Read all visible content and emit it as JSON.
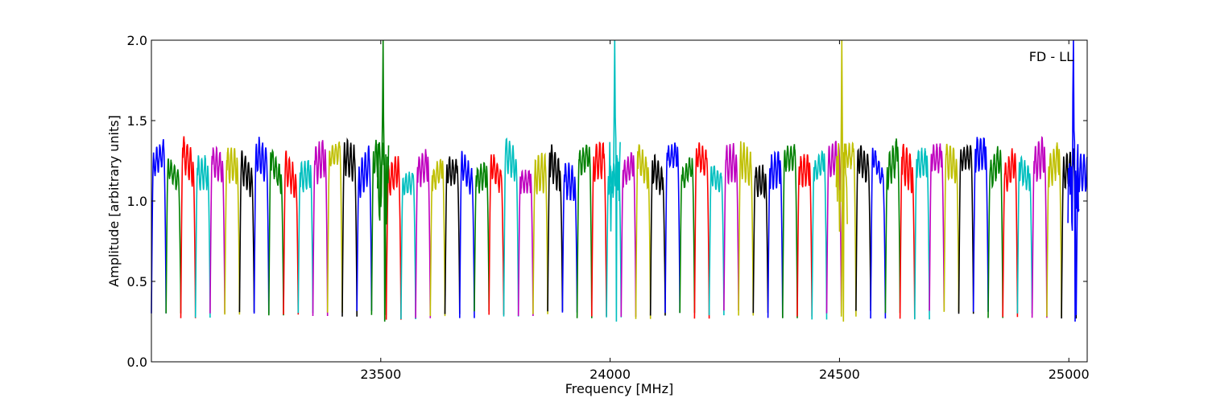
{
  "chart_data": {
    "type": "line",
    "title": "",
    "xlabel": "Frequency [MHz]",
    "ylabel": "Amplitude [arbitrary units]",
    "annotation": "FD - LL",
    "annotation_position": "top-right",
    "xlim": [
      23000,
      25040
    ],
    "ylim": [
      0.0,
      2.0
    ],
    "xticks": [
      23500,
      24000,
      24500,
      25000
    ],
    "xtick_labels": [
      "23500",
      "24000",
      "24500",
      "25000"
    ],
    "yticks": [
      0.0,
      0.5,
      1.0,
      1.5,
      2.0
    ],
    "ytick_labels": [
      "0.0",
      "0.5",
      "1.0",
      "1.5",
      "2.0"
    ],
    "grid": false,
    "legend": false,
    "channel_width_mhz": 32,
    "channel_start_mhz": 23000,
    "colors": [
      "#0000ff",
      "#008000",
      "#ff0000",
      "#00bfbf",
      "#bf00bf",
      "#bfbf00",
      "#000000"
    ],
    "notes": "Series of ~64 adjacent spectral channels (each ~32 MHz wide), colors cycling blue, green, red, cyan, magenta, yellow, black. Each channel shows a rippled passband around 1.1-1.3 with deep edge drop to ~0.25-0.3. Narrow spikes exceeding 2.0 near 23505, 24010, 24505 and 25010 MHz.",
    "spikes": [
      {
        "x": 23505,
        "y": 2.0
      },
      {
        "x": 24010,
        "y": 2.0
      },
      {
        "x": 24505,
        "y": 2.0
      },
      {
        "x": 25010,
        "y": 2.0
      }
    ]
  }
}
